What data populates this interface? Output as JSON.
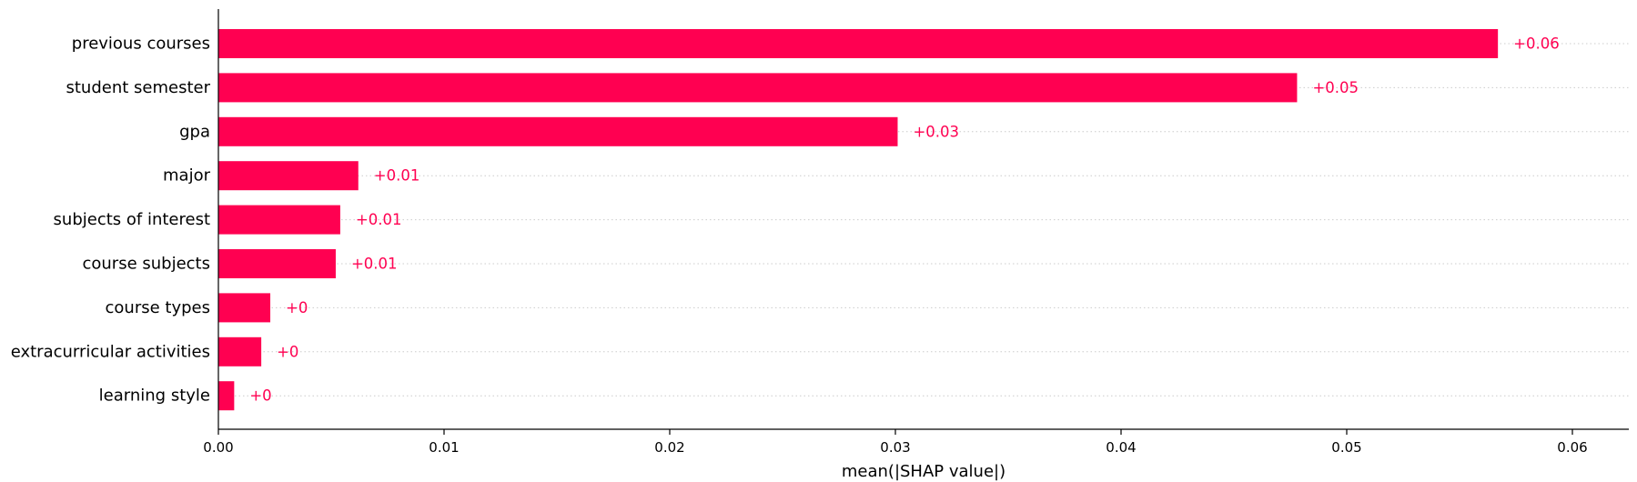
{
  "chart_data": {
    "type": "bar",
    "orientation": "horizontal",
    "categories": [
      "previous courses",
      "student semester",
      "gpa",
      "major",
      "subjects of interest",
      "course subjects",
      "course types",
      "extracurricular activities",
      "learning style"
    ],
    "values": [
      0.0567,
      0.0478,
      0.0301,
      0.0062,
      0.0054,
      0.0052,
      0.0023,
      0.0019,
      0.0007
    ],
    "value_labels": [
      "+0.06",
      "+0.05",
      "+0.03",
      "+0.01",
      "+0.01",
      "+0.01",
      "+0",
      "+0",
      "+0"
    ],
    "xlabel": "mean(|SHAP value|)",
    "ylabel": "",
    "xlim": [
      0,
      0.0625
    ],
    "xticks": [
      0.0,
      0.01,
      0.02,
      0.03,
      0.04,
      0.05,
      0.06
    ],
    "xtick_labels": [
      "0.00",
      "0.01",
      "0.02",
      "0.03",
      "0.04",
      "0.05",
      "0.06"
    ],
    "grid": "dotted horizontal lines per row",
    "bar_color": "#ff0051",
    "label_color": "#ff0051"
  }
}
